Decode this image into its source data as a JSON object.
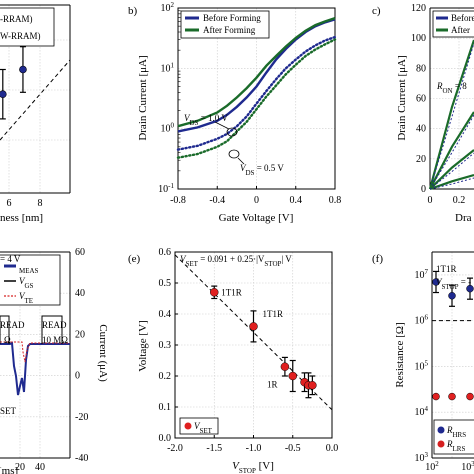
{
  "chart_data": [
    {
      "panel": "a",
      "type": "scatter",
      "legend": [
        "-RRAM)",
        "W-RRAM)"
      ],
      "xlabel": "ness [nm]",
      "x_ticks": [
        "6",
        "8"
      ],
      "points": [
        {
          "x": 5.6,
          "y": 0.52,
          "err": 0.13
        },
        {
          "x": 6.9,
          "y": 0.65,
          "err": 0.12
        }
      ],
      "fit": "dashed"
    },
    {
      "panel": "b)",
      "type": "line",
      "xlabel": "Gate Voltage [V]",
      "ylabel": "Drain Current [μA]",
      "xlim": [
        -0.8,
        0.8
      ],
      "ylim_log10": [
        -1,
        2
      ],
      "x_ticks": [
        "-0.8",
        "-0.4",
        "0",
        "0.4",
        "0.8"
      ],
      "y_ticks": [
        "10",
        "10",
        "10",
        "10"
      ],
      "y_tick_exponents": [
        "-1",
        "0",
        "1",
        "2"
      ],
      "annotations": [
        {
          "text": "V",
          "sub": "DS",
          "rest": " = 1.0 V"
        },
        {
          "text": "V",
          "sub": "DS",
          "rest": " = 0.5 V"
        }
      ],
      "series": [
        {
          "name": "Before Forming",
          "color": "#1f2a8f",
          "x": [
            -0.8,
            -0.6,
            -0.4,
            -0.3,
            -0.2,
            -0.1,
            0.0,
            0.1,
            0.2,
            0.3,
            0.4,
            0.5,
            0.6,
            0.7,
            0.8
          ],
          "vds10": [
            0.9,
            1.05,
            1.35,
            1.7,
            2.3,
            3.3,
            5.0,
            8.5,
            14,
            21,
            30,
            40,
            50,
            58,
            65
          ],
          "vds05": [
            0.45,
            0.52,
            0.68,
            0.82,
            1.1,
            1.6,
            2.6,
            4.2,
            6.6,
            10,
            14,
            19,
            24,
            29,
            33
          ]
        },
        {
          "name": "After Forming",
          "color": "#1a6b2a",
          "x": [
            -0.8,
            -0.6,
            -0.4,
            -0.3,
            -0.2,
            -0.1,
            0.0,
            0.1,
            0.2,
            0.3,
            0.4,
            0.5,
            0.6,
            0.7,
            0.8
          ],
          "vds10": [
            1.1,
            1.35,
            1.85,
            2.4,
            3.3,
            4.7,
            7.0,
            11,
            16,
            23,
            32,
            42,
            52,
            60,
            68
          ],
          "vds05": [
            0.33,
            0.38,
            0.5,
            0.62,
            0.9,
            1.3,
            2.1,
            3.4,
            5.2,
            8,
            11.5,
            16,
            20.5,
            25,
            30
          ]
        }
      ]
    },
    {
      "panel": "c)",
      "type": "line",
      "ylabel": "Drain Current [μA]",
      "xlabel": "Dra",
      "x_ticks": [
        "0",
        "0.2"
      ],
      "y_ticks": [
        "0",
        "20",
        "40",
        "60",
        "80",
        "100",
        "120"
      ],
      "annotation": {
        "text": "R",
        "sub": "ON",
        "rest": " = 8"
      },
      "legend": [
        "Before",
        "After"
      ]
    },
    {
      "panel": "d",
      "type": "line",
      "legend": [
        "MEAS",
        "V",
        "V"
      ],
      "legend_subs": [
        "",
        "GS",
        "TE"
      ],
      "annotation": "= 4 V",
      "ylabel_right": "Current (μA)",
      "y2_ticks": [
        "60",
        "40",
        "20",
        "0",
        "-20",
        "-40"
      ],
      "xlabel": "[ms]",
      "x_ticks": [
        "20",
        "40"
      ],
      "labels": [
        "READ",
        "READ",
        "Ω",
        "10 MΩ",
        "SET"
      ]
    },
    {
      "panel": "(e)",
      "type": "scatter",
      "title": "V",
      "title_sub": "SET",
      "title_rest": " = 0.091 + 0.25·|V",
      "title_sub2": "STOP",
      "title_end": "| V",
      "xlabel": "V",
      "xlabel_sub": "STOP",
      "xlabel_rest": " [V]",
      "ylabel": "Voltage [V]",
      "xlim": [
        -2.0,
        0.0
      ],
      "ylim": [
        0.0,
        0.6
      ],
      "x_ticks": [
        "-2.0",
        "-1.5",
        "-1.0",
        "-0.5",
        "0.0"
      ],
      "y_ticks": [
        "0.0",
        "0.1",
        "0.2",
        "0.3",
        "0.4",
        "0.5",
        "0.6"
      ],
      "point_labels": [
        "1T1R",
        "1T1R",
        "1R"
      ],
      "legend": {
        "text": "V",
        "sub": "SET"
      },
      "points": [
        {
          "x": -1.5,
          "y": 0.47,
          "err": 0.02
        },
        {
          "x": -1.0,
          "y": 0.36,
          "err": 0.05
        },
        {
          "x": -0.6,
          "y": 0.23,
          "err": 0.03
        },
        {
          "x": -0.5,
          "y": 0.2,
          "err": 0.05
        },
        {
          "x": -0.35,
          "y": 0.18,
          "err": 0.03
        },
        {
          "x": -0.3,
          "y": 0.17,
          "err": 0.04
        },
        {
          "x": -0.25,
          "y": 0.17,
          "err": 0.03
        }
      ],
      "fit": {
        "intercept": 0.091,
        "slope": 0.25,
        "style": "dashed"
      }
    },
    {
      "panel": "(f)",
      "type": "scatter",
      "ylabel": "Resistance [Ω]",
      "y_ticks": [
        "10",
        "10",
        "10",
        "10",
        "10"
      ],
      "y_tick_exponents": [
        "3",
        "4",
        "5",
        "6",
        "7"
      ],
      "x_ticks": [
        "10",
        "10"
      ],
      "x_tick_exponents": [
        "2",
        "3"
      ],
      "annotation": [
        "1T1R",
        "V",
        "STOP",
        " = -"
      ],
      "legend": [
        {
          "text": "R",
          "sub": "HRS",
          "color": "#1f2a8f"
        },
        {
          "text": "R",
          "sub": "LRS",
          "color": "#d62020"
        }
      ],
      "hrs": [
        7000000.0,
        3500000.0,
        5000000.0
      ],
      "lrs": [
        22000.0,
        22000.0,
        22000.0
      ],
      "threshold": 1000000.0
    }
  ]
}
